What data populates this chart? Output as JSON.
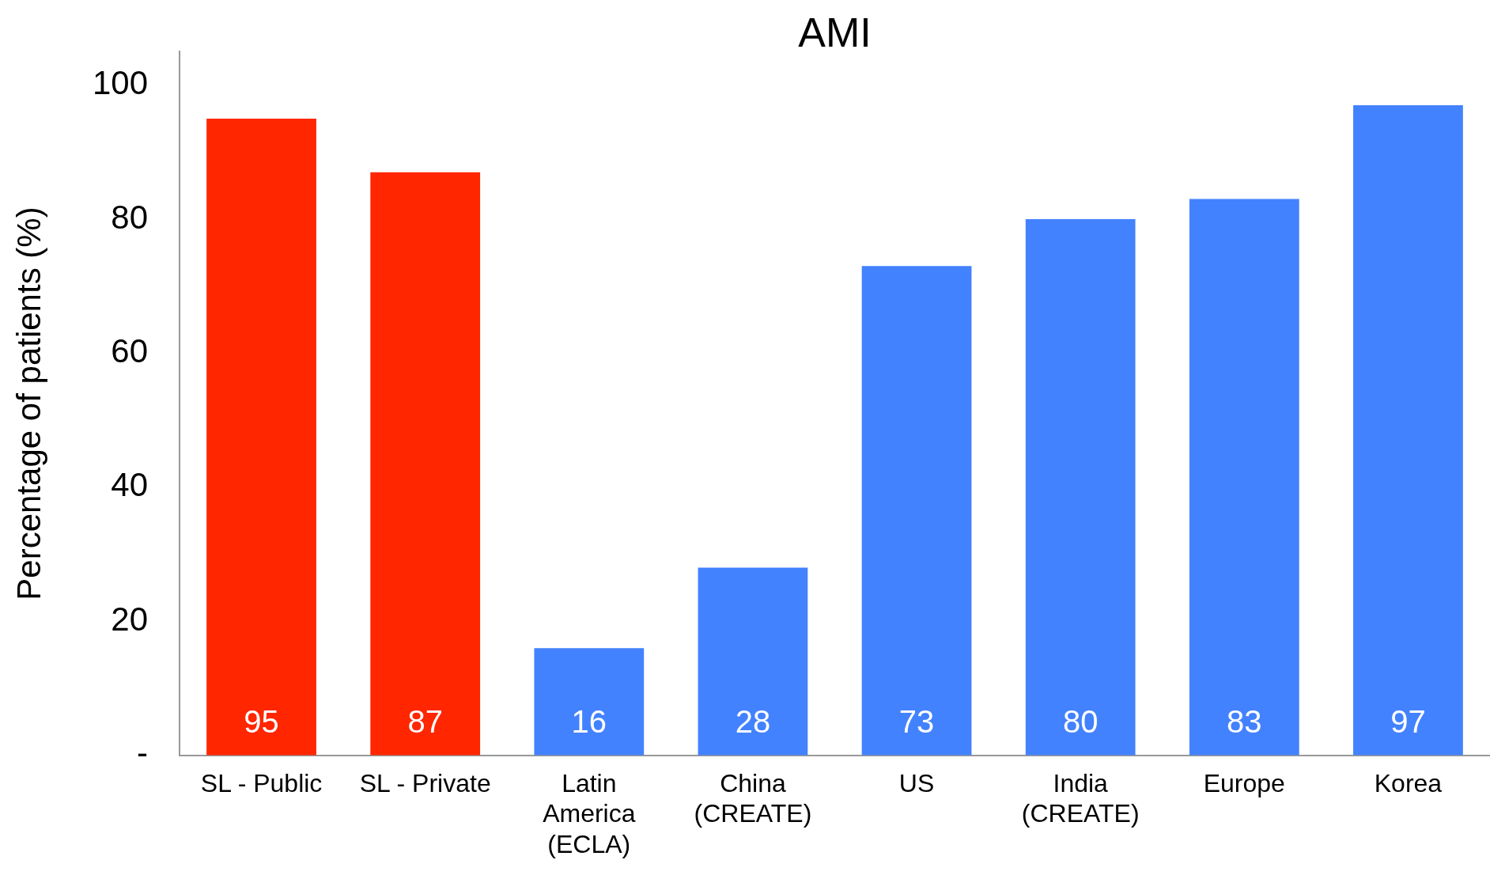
{
  "chart_data": {
    "type": "bar",
    "title": "AMI",
    "ylabel": "Percentage of patients (%)",
    "categories": [
      "SL - Public",
      "SL - Private",
      "Latin\nAmerica\n(ECLA)",
      "China\n(CREATE)",
      "US",
      "India\n(CREATE)",
      "Europe",
      "Korea"
    ],
    "values": [
      95,
      87,
      16,
      28,
      73,
      80,
      83,
      97
    ],
    "colors": [
      "#ff2600",
      "#ff2600",
      "#4382fe",
      "#4382fe",
      "#4382fe",
      "#4382fe",
      "#4382fe",
      "#4382fe"
    ],
    "ylim": [
      0,
      105
    ],
    "yticks": [
      {
        "value": 0,
        "label": "-"
      },
      20,
      40,
      60,
      80,
      100
    ],
    "grid": false,
    "legend": false,
    "data_labels": true
  }
}
